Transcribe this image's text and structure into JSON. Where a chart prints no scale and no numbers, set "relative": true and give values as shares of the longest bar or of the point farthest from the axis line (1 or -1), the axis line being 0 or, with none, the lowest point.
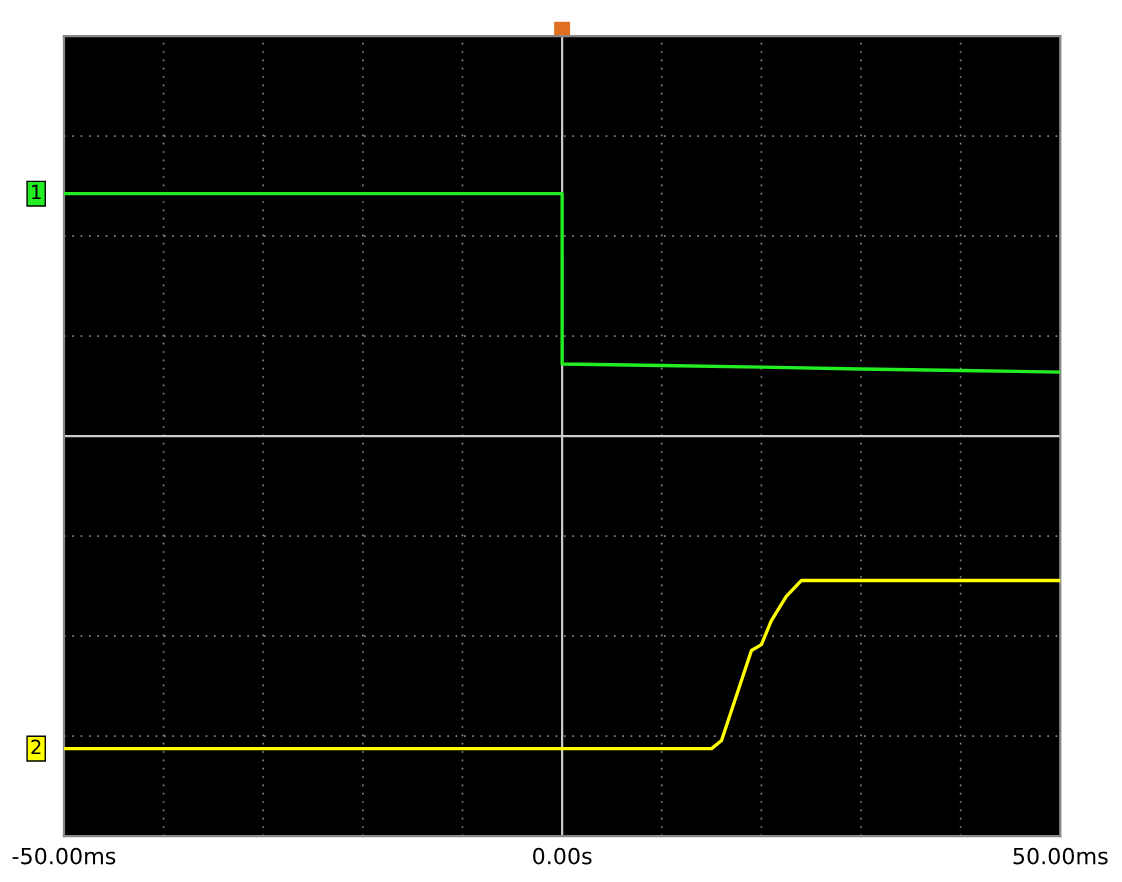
{
  "chart_data": {
    "type": "line",
    "relative": true,
    "xlim": [
      -50,
      50
    ],
    "xticks": [
      {
        "value": -50,
        "label": "-50.00ms"
      },
      {
        "value": -40,
        "label": null
      },
      {
        "value": -30,
        "label": null
      },
      {
        "value": -20,
        "label": null
      },
      {
        "value": -10,
        "label": null
      },
      {
        "value": 0,
        "label": "0.00s"
      },
      {
        "value": 10,
        "label": null
      },
      {
        "value": 20,
        "label": null
      },
      {
        "value": 30,
        "label": null
      },
      {
        "value": 40,
        "label": null
      },
      {
        "value": 50,
        "label": "50.00ms"
      }
    ],
    "grid": true,
    "marker": "none",
    "line_style": "solid",
    "series": [
      {
        "name": "1",
        "color": "#22ee22",
        "x": [
          -50,
          -25,
          0,
          0,
          10,
          20,
          30,
          40,
          50
        ],
        "values": [
          0.776,
          0.776,
          0.776,
          0.231,
          0.226,
          0.221,
          0.215,
          0.21,
          0.205
        ]
      },
      {
        "name": "2",
        "color": "#ffff00",
        "x": [
          -50,
          -25,
          0,
          15,
          16,
          18,
          19,
          20,
          21,
          22.5,
          24,
          25,
          50
        ],
        "values": [
          -1,
          -1,
          -1,
          -1,
          -0.974,
          -0.782,
          -0.686,
          -0.667,
          -0.59,
          -0.513,
          -0.462,
          -0.462,
          -0.462
        ]
      }
    ]
  }
}
